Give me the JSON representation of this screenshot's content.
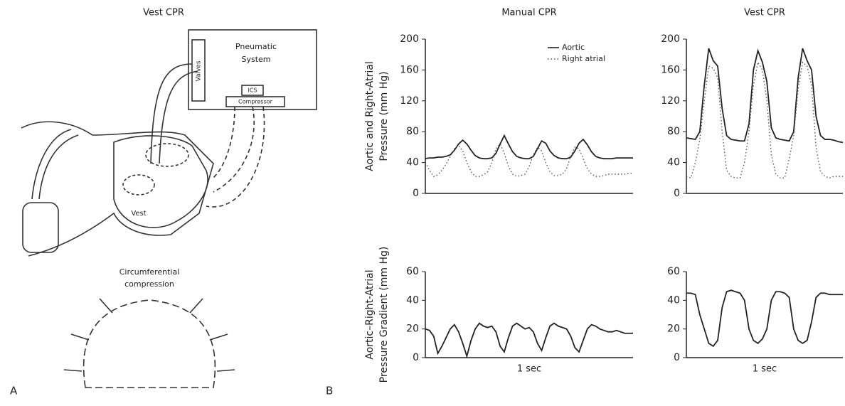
{
  "illustration": {
    "title": "Vest CPR",
    "pneumatic_system": [
      "Pneumatic",
      "System"
    ],
    "valves": "Valves",
    "servo": "ICS",
    "compressor": "Compressor",
    "vest": "Vest",
    "caption": [
      "Circumferential",
      "compression"
    ],
    "panel_a": "A",
    "panel_b": "B"
  },
  "chart_data": [
    {
      "type": "line",
      "title": "Manual CPR",
      "ylabel": [
        "Aortic and Right-Atrial",
        "Pressure (mm Hg)"
      ],
      "x": [
        0,
        0.1,
        0.2,
        0.3,
        0.4,
        0.5,
        0.6,
        0.7,
        0.8,
        0.9,
        1,
        1.1,
        1.2,
        1.3,
        1.4,
        1.5,
        1.6,
        1.7,
        1.8,
        1.9,
        2,
        2.1,
        2.2,
        2.3,
        2.4,
        2.5,
        2.6,
        2.7,
        2.8,
        2.9,
        3,
        3.1,
        3.2,
        3.3,
        3.4,
        3.5,
        3.6,
        3.7,
        3.8,
        3.9,
        4,
        4.1,
        4.2,
        4.3,
        4.4,
        4.5,
        4.6,
        4.7,
        4.8,
        4.9,
        5
      ],
      "xlim": [
        0,
        5
      ],
      "ylim": [
        0,
        200
      ],
      "yticks": [
        0,
        40,
        80,
        120,
        160,
        200
      ],
      "legend": "upper right",
      "series": [
        {
          "name": "Aortic",
          "color": "#222222",
          "style": "solid",
          "values": [
            45,
            46,
            46,
            47,
            47,
            48,
            50,
            56,
            64,
            69,
            64,
            56,
            49,
            46,
            45,
            45,
            46,
            52,
            64,
            75,
            64,
            54,
            48,
            46,
            45,
            45,
            48,
            58,
            68,
            65,
            55,
            49,
            46,
            45,
            45,
            47,
            55,
            65,
            70,
            63,
            54,
            48,
            46,
            45,
            45,
            45,
            46,
            46,
            46,
            46,
            46
          ]
        },
        {
          "name": "Right atrial",
          "color": "#555555",
          "style": "dotted",
          "values": [
            40,
            30,
            22,
            24,
            30,
            38,
            48,
            58,
            62,
            55,
            40,
            28,
            22,
            22,
            24,
            28,
            40,
            58,
            64,
            52,
            35,
            25,
            22,
            23,
            25,
            35,
            50,
            60,
            55,
            40,
            28,
            23,
            23,
            25,
            32,
            48,
            60,
            58,
            45,
            32,
            25,
            22,
            22,
            23,
            25,
            25,
            25,
            25,
            25,
            26,
            26
          ]
        }
      ]
    },
    {
      "type": "line",
      "title": "Vest CPR",
      "x": [
        0,
        0.1,
        0.2,
        0.3,
        0.4,
        0.5,
        0.6,
        0.7,
        0.8,
        0.9,
        1,
        1.1,
        1.2,
        1.3,
        1.4,
        1.5,
        1.6,
        1.7,
        1.8,
        1.9,
        2,
        2.1,
        2.2,
        2.3,
        2.4,
        2.5,
        2.6,
        2.7,
        2.8,
        2.9,
        3,
        3.1,
        3.2,
        3.3,
        3.4,
        3.5
      ],
      "xlim": [
        0,
        3.5
      ],
      "ylim": [
        0,
        200
      ],
      "yticks": [
        0,
        40,
        80,
        120,
        160,
        200
      ],
      "series": [
        {
          "color": "#222222",
          "style": "solid",
          "values": [
            72,
            71,
            70,
            80,
            140,
            188,
            172,
            165,
            110,
            75,
            70,
            69,
            68,
            68,
            90,
            160,
            185,
            170,
            145,
            85,
            72,
            70,
            69,
            68,
            80,
            150,
            188,
            172,
            160,
            100,
            75,
            70,
            70,
            69,
            67,
            66
          ]
        },
        {
          "color": "#555555",
          "style": "dotted",
          "values": [
            22,
            20,
            40,
            70,
            120,
            165,
            162,
            150,
            80,
            30,
            22,
            20,
            20,
            40,
            80,
            140,
            170,
            160,
            120,
            50,
            25,
            20,
            20,
            45,
            75,
            135,
            170,
            165,
            140,
            60,
            28,
            22,
            20,
            22,
            22,
            22
          ]
        }
      ]
    },
    {
      "type": "line",
      "ylabel": [
        "Aortic–Right-Atrial",
        "Pressure Gradient (mm Hg)"
      ],
      "annotation": "1 sec",
      "color": "#222222",
      "x": [
        0,
        0.1,
        0.2,
        0.3,
        0.4,
        0.5,
        0.6,
        0.7,
        0.8,
        0.9,
        1,
        1.1,
        1.2,
        1.3,
        1.4,
        1.5,
        1.6,
        1.7,
        1.8,
        1.9,
        2,
        2.1,
        2.2,
        2.3,
        2.4,
        2.5,
        2.6,
        2.7,
        2.8,
        2.9,
        3,
        3.1,
        3.2,
        3.3,
        3.4,
        3.5,
        3.6,
        3.7,
        3.8,
        3.9,
        4,
        4.1,
        4.2,
        4.3,
        4.4,
        4.5,
        4.6,
        4.7,
        4.8,
        4.9,
        5
      ],
      "xlim": [
        0,
        5
      ],
      "ylim": [
        0,
        60
      ],
      "yticks": [
        0,
        20,
        40,
        60
      ],
      "values": [
        20,
        19,
        15,
        3,
        8,
        14,
        20,
        23,
        18,
        10,
        1,
        12,
        20,
        24,
        22,
        21,
        22,
        18,
        8,
        4,
        14,
        22,
        24,
        22,
        20,
        21,
        18,
        10,
        5,
        14,
        22,
        24,
        22,
        21,
        20,
        15,
        7,
        4,
        12,
        20,
        23,
        22,
        20,
        19,
        18,
        18,
        19,
        18,
        17,
        17,
        17
      ]
    },
    {
      "type": "line",
      "annotation": "1 sec",
      "color": "#222222",
      "x": [
        0,
        0.1,
        0.2,
        0.3,
        0.4,
        0.5,
        0.6,
        0.7,
        0.8,
        0.9,
        1,
        1.1,
        1.2,
        1.3,
        1.4,
        1.5,
        1.6,
        1.7,
        1.8,
        1.9,
        2,
        2.1,
        2.2,
        2.3,
        2.4,
        2.5,
        2.6,
        2.7,
        2.8,
        2.9,
        3,
        3.1,
        3.2,
        3.3,
        3.4,
        3.5
      ],
      "xlim": [
        0,
        3.5
      ],
      "ylim": [
        0,
        60
      ],
      "yticks": [
        0,
        20,
        40,
        60
      ],
      "values": [
        45,
        45,
        44,
        30,
        20,
        10,
        8,
        12,
        35,
        46,
        47,
        46,
        45,
        40,
        20,
        12,
        10,
        13,
        20,
        40,
        46,
        46,
        45,
        42,
        20,
        12,
        10,
        12,
        25,
        42,
        45,
        45,
        44,
        44,
        44,
        44
      ]
    }
  ]
}
